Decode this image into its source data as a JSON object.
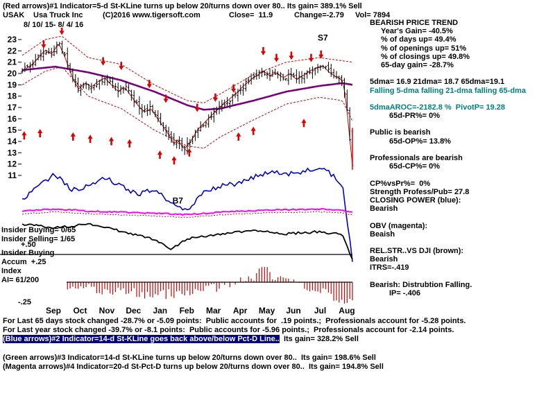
{
  "header": {
    "indicator1_line": "(Red arrows)#1 Indicator=5-d St-KLine turns up below 20/turns down over 80.. Its gain= 389.1% Sell",
    "symbol": "USAK",
    "company": "Usa Truck Inc",
    "copyright": "(C)2016 www.tigersoft.com",
    "close_label": "Close=  11.9",
    "change_label": "Change=-2.79",
    "volume_label": "Vol= 7894",
    "date_range": "8/ 10/ 15- 8/ 4/ 16"
  },
  "left_labels": {
    "insider_buying": "Insider Buying= 0/65",
    "insider_selling": "Insider Selling= 1/65",
    "plus50": "+.50",
    "accum_row1": "Insider Buying",
    "accum_row2": "Accum  +.25",
    "accum_row3": "Index",
    "accum_row4": "AI= 61/200",
    "minus25": "-.25"
  },
  "right_panel": {
    "lines": [
      {
        "text": "BEARISH PRICE TREND",
        "cls": ""
      },
      {
        "text": "Year's Gain= -40.5%",
        "cls": "i2"
      },
      {
        "text": "% of days up= 49.4%",
        "cls": "i2"
      },
      {
        "text": "% of openings up= 51%",
        "cls": "i2"
      },
      {
        "text": "% of closings up= 49.8%",
        "cls": "i2"
      },
      {
        "text": "65-day gain= -28.7%",
        "cls": "i2"
      },
      {
        "text": "",
        "cls": ""
      },
      {
        "text": "5dma= 16.9 21dma= 18.7 65dma=19.1",
        "cls": ""
      },
      {
        "text": "Falling 5-dma falling 21-dma falling 65-dma",
        "cls": "teal"
      },
      {
        "text": "",
        "cls": ""
      },
      {
        "text": "5dmaAROC=-2182.8 %  PivotP= 19.28",
        "cls": "teal"
      },
      {
        "text": "65d-PR%= 0%",
        "cls": "i3"
      },
      {
        "text": "",
        "cls": ""
      },
      {
        "text": "Public is bearish",
        "cls": ""
      },
      {
        "text": "65d-OP%= 13.8%",
        "cls": "i3"
      },
      {
        "text": "",
        "cls": ""
      },
      {
        "text": "Professionals are bearish",
        "cls": ""
      },
      {
        "text": "65d-CP%= 0%",
        "cls": "i3"
      },
      {
        "text": "",
        "cls": ""
      },
      {
        "text": "CP%vsPr%=  0%",
        "cls": ""
      },
      {
        "text": "Strength Profess/Pub= 27.8",
        "cls": ""
      },
      {
        "text": "CLOSING POWER (blue):",
        "cls": ""
      },
      {
        "text": "Bearish",
        "cls": ""
      },
      {
        "text": "",
        "cls": ""
      },
      {
        "text": "OBV (magenta):",
        "cls": ""
      },
      {
        "text": "Beaish",
        "cls": ""
      },
      {
        "text": "",
        "cls": ""
      },
      {
        "text": "REL.STR..VS DJI (brown):",
        "cls": ""
      },
      {
        "text": "Bearish",
        "cls": ""
      },
      {
        "text": "ITRS=-.419",
        "cls": ""
      },
      {
        "text": "",
        "cls": ""
      },
      {
        "text": "Bearish: Distrubtion Falling.",
        "cls": ""
      },
      {
        "text": "IP= -.406",
        "cls": "i3"
      }
    ]
  },
  "footer": {
    "lines": [
      {
        "text": "For Last 65 days stock changed -28.7% or -5.09 points:  Public accounts for  .19 points.;  Professionals account for -5.28 points."
      },
      {
        "text": "For Last year stock changed -39.7% or -8.1 points:  Public accounts for -5.96 points.;  Professionals account for -2.14 points."
      },
      {
        "hl": "(Blue arrows)#2 Indicator=14-d St-KLine goes back above/below Pct-D Line..",
        "rest": "  Its gain= 328.2% Sell"
      },
      {
        "text": ""
      },
      {
        "text": "(Green arrows)#3 Indicator=14-d St-KLine turns up below 20/turns down over 80..  Its gain= 198.6% Sell"
      },
      {
        "text": "(Magenta arrows)#4 Indicator=20-d St-Pct-D turns up below 20/turns down over 80..  Its gain= 194.8% Sell"
      }
    ]
  },
  "chart_data": {
    "type": "line",
    "subtype": "ohlc-stock-multipanel",
    "title": "USAK Usa Truck Inc",
    "date_range": "8/ 10/ 15- 8/ 4/ 16",
    "last_close": 11.9,
    "bars": 125,
    "price_axis_ticks": [
      23,
      22,
      21,
      20,
      19,
      18,
      17,
      16,
      15,
      14,
      13,
      12,
      11
    ],
    "month_labels": [
      "Sep",
      "Oct",
      "Nov",
      "Dec",
      "Jan",
      "Feb",
      "Mar",
      "Apr",
      "May",
      "Jun",
      "Jul",
      "Aug"
    ],
    "close_anchors": [
      [
        0,
        20.2
      ],
      [
        0.03,
        20.8
      ],
      [
        0.05,
        21.4
      ],
      [
        0.07,
        22.1
      ],
      [
        0.09,
        21.7
      ],
      [
        0.11,
        22.7
      ],
      [
        0.13,
        21.4
      ],
      [
        0.15,
        19.8
      ],
      [
        0.17,
        18.6
      ],
      [
        0.19,
        19.2
      ],
      [
        0.21,
        18.8
      ],
      [
        0.23,
        19.3
      ],
      [
        0.25,
        19.6
      ],
      [
        0.27,
        19.0
      ],
      [
        0.29,
        18.4
      ],
      [
        0.31,
        18.8
      ],
      [
        0.33,
        18.0
      ],
      [
        0.35,
        17.2
      ],
      [
        0.37,
        16.6
      ],
      [
        0.39,
        16.9
      ],
      [
        0.41,
        16.0
      ],
      [
        0.43,
        15.2
      ],
      [
        0.45,
        14.3
      ],
      [
        0.46,
        13.7
      ],
      [
        0.47,
        14.2
      ],
      [
        0.49,
        13.3
      ],
      [
        0.51,
        14.0
      ],
      [
        0.53,
        15.0
      ],
      [
        0.55,
        15.6
      ],
      [
        0.57,
        16.2
      ],
      [
        0.59,
        16.8
      ],
      [
        0.61,
        17.3
      ],
      [
        0.63,
        17.8
      ],
      [
        0.65,
        18.3
      ],
      [
        0.67,
        18.9
      ],
      [
        0.69,
        19.4
      ],
      [
        0.71,
        19.8
      ],
      [
        0.73,
        20.2
      ],
      [
        0.75,
        19.8
      ],
      [
        0.77,
        20.1
      ],
      [
        0.79,
        19.6
      ],
      [
        0.81,
        20.0
      ],
      [
        0.83,
        19.5
      ],
      [
        0.85,
        19.8
      ],
      [
        0.87,
        20.2
      ],
      [
        0.89,
        20.5
      ],
      [
        0.91,
        20.7
      ],
      [
        0.93,
        20.1
      ],
      [
        0.95,
        19.7
      ],
      [
        0.97,
        19.4
      ],
      [
        0.98,
        17.8
      ],
      [
        0.99,
        14.8
      ],
      [
        1,
        11.9
      ]
    ],
    "ma65_anchors": [
      [
        0,
        20.3
      ],
      [
        0.1,
        20.6
      ],
      [
        0.2,
        20.1
      ],
      [
        0.3,
        19.4
      ],
      [
        0.4,
        18.4
      ],
      [
        0.5,
        17.2
      ],
      [
        0.55,
        16.8
      ],
      [
        0.6,
        16.9
      ],
      [
        0.7,
        17.6
      ],
      [
        0.8,
        18.4
      ],
      [
        0.9,
        18.9
      ],
      [
        0.97,
        19.15
      ],
      [
        1,
        19.0
      ]
    ],
    "upper_band_anchors": [
      [
        0,
        21.6
      ],
      [
        0.07,
        23.0
      ],
      [
        0.12,
        23.3
      ],
      [
        0.2,
        21.4
      ],
      [
        0.3,
        20.8
      ],
      [
        0.4,
        19.0
      ],
      [
        0.5,
        17.6
      ],
      [
        0.55,
        17.4
      ],
      [
        0.6,
        18.2
      ],
      [
        0.7,
        19.9
      ],
      [
        0.8,
        21.0
      ],
      [
        0.9,
        21.4
      ],
      [
        1,
        21.0
      ]
    ],
    "lower_band_anchors": [
      [
        0,
        19.0
      ],
      [
        0.07,
        20.2
      ],
      [
        0.12,
        20.6
      ],
      [
        0.2,
        18.0
      ],
      [
        0.3,
        16.9
      ],
      [
        0.4,
        15.0
      ],
      [
        0.5,
        13.6
      ],
      [
        0.55,
        13.4
      ],
      [
        0.6,
        14.4
      ],
      [
        0.7,
        15.9
      ],
      [
        0.8,
        17.3
      ],
      [
        0.9,
        17.9
      ],
      [
        0.97,
        17.6
      ],
      [
        1,
        15.8
      ]
    ],
    "closing_power_anchors": [
      [
        0,
        0.7
      ],
      [
        0.05,
        0.5
      ],
      [
        0.1,
        0.3
      ],
      [
        0.15,
        0.55
      ],
      [
        0.2,
        0.5
      ],
      [
        0.25,
        0.35
      ],
      [
        0.3,
        0.5
      ],
      [
        0.35,
        0.62
      ],
      [
        0.4,
        0.55
      ],
      [
        0.45,
        0.78
      ],
      [
        0.5,
        0.88
      ],
      [
        0.55,
        0.6
      ],
      [
        0.6,
        0.5
      ],
      [
        0.65,
        0.45
      ],
      [
        0.7,
        0.35
      ],
      [
        0.75,
        0.25
      ],
      [
        0.8,
        0.3
      ],
      [
        0.85,
        0.25
      ],
      [
        0.9,
        0.18
      ],
      [
        0.95,
        0.35
      ],
      [
        0.97,
        0.5
      ],
      [
        1,
        1.72
      ]
    ],
    "obv_anchors": [
      [
        0,
        0.55
      ],
      [
        0.1,
        0.45
      ],
      [
        0.2,
        0.55
      ],
      [
        0.3,
        0.6
      ],
      [
        0.4,
        0.65
      ],
      [
        0.5,
        0.72
      ],
      [
        0.6,
        0.6
      ],
      [
        0.7,
        0.52
      ],
      [
        0.8,
        0.48
      ],
      [
        0.9,
        0.45
      ],
      [
        0.97,
        0.5
      ],
      [
        1,
        0.62
      ]
    ],
    "rel_str_anchors": [
      [
        0,
        0.3
      ],
      [
        0.1,
        0.38
      ],
      [
        0.2,
        0.3
      ],
      [
        0.3,
        0.45
      ],
      [
        0.4,
        0.62
      ],
      [
        0.45,
        0.82
      ],
      [
        0.5,
        0.6
      ],
      [
        0.55,
        0.55
      ],
      [
        0.6,
        0.5
      ],
      [
        0.7,
        0.44
      ],
      [
        0.8,
        0.5
      ],
      [
        0.9,
        0.46
      ],
      [
        0.97,
        0.52
      ],
      [
        1,
        1.05
      ]
    ],
    "accum_anchors": [
      [
        0,
        -0.06
      ],
      [
        0.1,
        -0.12
      ],
      [
        0.2,
        -0.08
      ],
      [
        0.3,
        -0.11
      ],
      [
        0.4,
        -0.16
      ],
      [
        0.5,
        -0.12
      ],
      [
        0.6,
        -0.05
      ],
      [
        0.7,
        0.04
      ],
      [
        0.73,
        0.26
      ],
      [
        0.76,
        0.05
      ],
      [
        0.8,
        0.0
      ],
      [
        0.85,
        -0.05
      ],
      [
        0.9,
        -0.1
      ],
      [
        0.95,
        -0.2
      ],
      [
        1,
        -0.26
      ]
    ],
    "arrows_down": [
      [
        0.065,
        22.2
      ],
      [
        0.12,
        23.4
      ],
      [
        0.245,
        20.7
      ],
      [
        0.3,
        20.3
      ],
      [
        0.385,
        18.7
      ],
      [
        0.435,
        17.4
      ],
      [
        0.53,
        16.6
      ],
      [
        0.585,
        17.5
      ],
      [
        0.64,
        18.3
      ],
      [
        0.73,
        21.6
      ],
      [
        0.77,
        21.0
      ],
      [
        0.815,
        21.2
      ],
      [
        0.875,
        21.0
      ],
      [
        0.905,
        21.3
      ]
    ],
    "arrows_up": [
      [
        0.006,
        14.9
      ],
      [
        0.054,
        15.1
      ],
      [
        0.154,
        14.8
      ],
      [
        0.206,
        14.6
      ],
      [
        0.27,
        14.4
      ],
      [
        0.325,
        14.2
      ],
      [
        0.417,
        13.2
      ],
      [
        0.46,
        12.7
      ],
      [
        0.506,
        13.4
      ],
      [
        0.655,
        14.8
      ],
      [
        0.7,
        15.3
      ],
      [
        0.853,
        16.0
      ]
    ],
    "signal_labels": [
      {
        "text": "S7",
        "t": 0.895,
        "price": 22.9
      },
      {
        "text": "B7",
        "t": 0.455,
        "panel": "cp",
        "v": 0.78
      }
    ],
    "colors": {
      "bars": "#000000",
      "bands": "#cc0000",
      "ma65": "#7a007a",
      "ma21": "#cc0000",
      "closing_power": "#0000cc",
      "obv": "#ff00ff",
      "rel_str": "#000000",
      "accum": "#cc0000",
      "accum_spike": "#000000",
      "arrows": "#dd0000",
      "last_bar": "#ff0000"
    }
  }
}
